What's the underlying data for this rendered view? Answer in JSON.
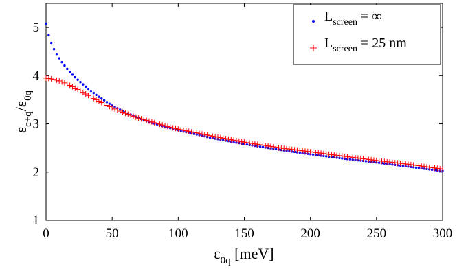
{
  "chart_data": {
    "type": "scatter",
    "xlim": [
      0,
      300
    ],
    "ylim": [
      1,
      5.5
    ],
    "xticks": [
      0,
      50,
      100,
      150,
      200,
      250,
      300
    ],
    "yticks": [
      1,
      2,
      3,
      4,
      5
    ],
    "xlabel": {
      "main": "ε",
      "sub": "0q",
      "tail": " [meV]"
    },
    "ylabel": {
      "part1": "ε",
      "sub1": "c+q",
      "part2": "/ε",
      "sub2": "0q"
    },
    "grid": false,
    "legend_position": "top-right",
    "series": [
      {
        "name": "L",
        "name_sub": "screen",
        "name_tail": " = ∞",
        "marker": "dot",
        "color": "#0000ff",
        "x": [
          0,
          2,
          4,
          6,
          8,
          10,
          12,
          14,
          16,
          18,
          20,
          25,
          30,
          35,
          40,
          45,
          50,
          60,
          70,
          80,
          90,
          100,
          125,
          150,
          175,
          200,
          225,
          250,
          275,
          300
        ],
        "y": [
          5.08,
          4.84,
          4.68,
          4.55,
          4.45,
          4.36,
          4.28,
          4.21,
          4.14,
          4.08,
          4.02,
          3.89,
          3.77,
          3.66,
          3.56,
          3.47,
          3.38,
          3.24,
          3.12,
          3.02,
          2.94,
          2.87,
          2.71,
          2.58,
          2.47,
          2.37,
          2.28,
          2.2,
          2.11,
          2.02
        ]
      },
      {
        "name": "L",
        "name_sub": "screen",
        "name_tail": " = 25 nm",
        "marker": "plus",
        "color": "#ff0000",
        "x": [
          0,
          5,
          10,
          15,
          20,
          25,
          30,
          35,
          40,
          45,
          50,
          60,
          70,
          80,
          90,
          100,
          125,
          150,
          175,
          200,
          225,
          250,
          275,
          300
        ],
        "y": [
          3.95,
          3.93,
          3.89,
          3.84,
          3.77,
          3.7,
          3.62,
          3.54,
          3.47,
          3.4,
          3.33,
          3.22,
          3.12,
          3.04,
          2.96,
          2.89,
          2.75,
          2.62,
          2.51,
          2.42,
          2.33,
          2.24,
          2.16,
          2.06
        ]
      }
    ]
  }
}
